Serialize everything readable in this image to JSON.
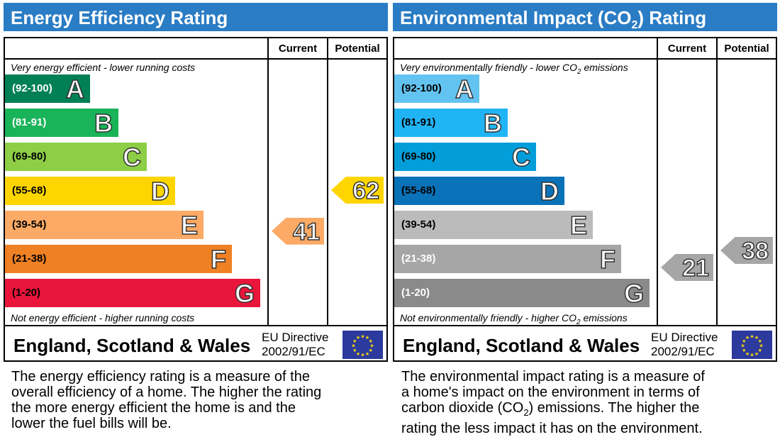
{
  "colors": {
    "title_bar": "#2a7cc4",
    "ee_bands": [
      "#008054",
      "#19b459",
      "#8dce46",
      "#ffd500",
      "#fcaa65",
      "#ef8023",
      "#e9153b"
    ],
    "ei_bands": [
      "#63c3f0",
      "#20b4f5",
      "#039ed9",
      "#0a72b8",
      "#bbbbbb",
      "#a6a6a6",
      "#8a8a8a"
    ]
  },
  "chart_data": [
    {
      "type": "bar",
      "title": "Energy Efficiency Rating",
      "column_headers": [
        "Current",
        "Potential"
      ],
      "top_note": "Very energy efficient - lower running costs",
      "bottom_note": "Not energy efficient - higher running costs",
      "bands": [
        {
          "range": "(92-100)",
          "letter": "A",
          "min": 92,
          "max": 100
        },
        {
          "range": "(81-91)",
          "letter": "B",
          "min": 81,
          "max": 91
        },
        {
          "range": "(69-80)",
          "letter": "C",
          "min": 69,
          "max": 80
        },
        {
          "range": "(55-68)",
          "letter": "D",
          "min": 55,
          "max": 68
        },
        {
          "range": "(39-54)",
          "letter": "E",
          "min": 39,
          "max": 54
        },
        {
          "range": "(21-38)",
          "letter": "F",
          "min": 21,
          "max": 38
        },
        {
          "range": "(1-20)",
          "letter": "G",
          "min": 1,
          "max": 20
        }
      ],
      "current": {
        "value": 41,
        "band": "E",
        "color": "#fcaa65"
      },
      "potential": {
        "value": 62,
        "band": "D",
        "color": "#ffd500"
      },
      "region": "England, Scotland & Wales",
      "directive_line1": "EU Directive",
      "directive_line2": "2002/91/EC"
    },
    {
      "type": "bar",
      "title_pre": "Environmental Impact (CO",
      "title_sub": "2",
      "title_post": ") Rating",
      "column_headers": [
        "Current",
        "Potential"
      ],
      "top_note_pre": "Very environmentally friendly - lower CO",
      "top_note_sub": "2",
      "top_note_post": " emissions",
      "bottom_note_pre": "Not environmentally friendly - higher CO",
      "bottom_note_sub": "2",
      "bottom_note_post": " emissions",
      "bands": [
        {
          "range": "(92-100)",
          "letter": "A",
          "min": 92,
          "max": 100
        },
        {
          "range": "(81-91)",
          "letter": "B",
          "min": 81,
          "max": 91
        },
        {
          "range": "(69-80)",
          "letter": "C",
          "min": 69,
          "max": 80
        },
        {
          "range": "(55-68)",
          "letter": "D",
          "min": 55,
          "max": 68
        },
        {
          "range": "(39-54)",
          "letter": "E",
          "min": 39,
          "max": 54
        },
        {
          "range": "(21-38)",
          "letter": "F",
          "min": 21,
          "max": 38
        },
        {
          "range": "(1-20)",
          "letter": "G",
          "min": 1,
          "max": 20
        }
      ],
      "current": {
        "value": 21,
        "band": "F",
        "color": "#a6a6a6"
      },
      "potential": {
        "value": 38,
        "band": "F",
        "color": "#a6a6a6"
      },
      "region": "England, Scotland & Wales",
      "directive_line1": "EU Directive",
      "directive_line2": "2002/91/EC"
    }
  ],
  "descriptions": {
    "energy": [
      "The energy efficiency rating is a measure of the",
      "overall efficiency of a home. The higher the rating",
      "the more energy efficient the home is and the",
      "lower the fuel bills will be."
    ],
    "environment": {
      "line1": "The environmental impact rating is a measure of",
      "line2": "a home's impact on the environment in terms of",
      "line3_pre": "carbon dioxide (CO",
      "line3_sub": "2",
      "line3_post": ") emissions. The higher the",
      "line4": "rating the less impact it has on the environment."
    }
  }
}
